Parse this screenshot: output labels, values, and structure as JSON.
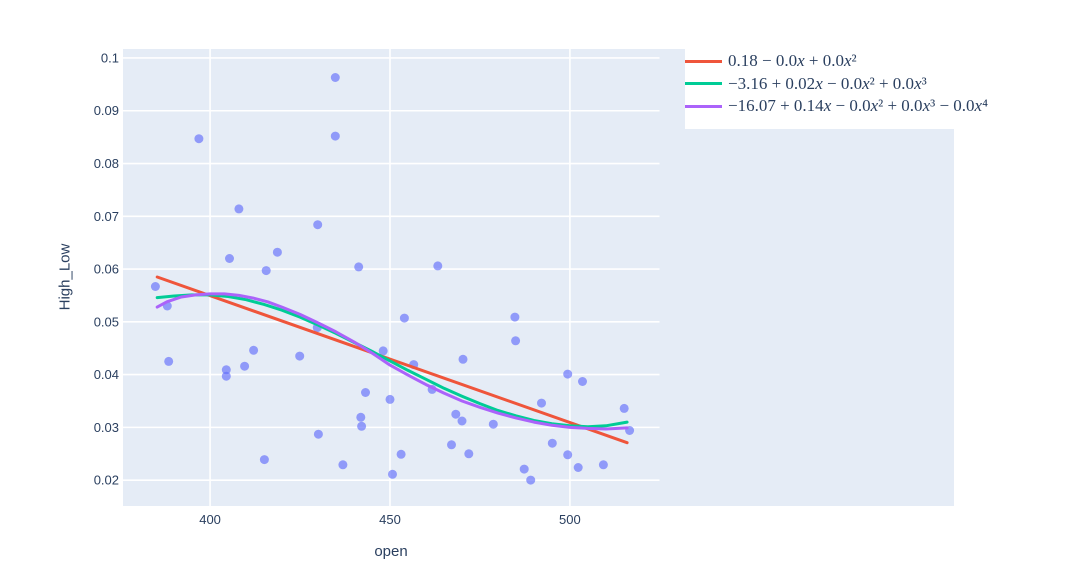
{
  "figure": {
    "colors": {
      "paper_bg": "#ffffff",
      "plot_bg": "#e5ecf6",
      "grid": "#ffffff",
      "text": "#2a3f5f",
      "legend_bg": "#ffffff"
    }
  },
  "chart_data": {
    "type": "scatter",
    "title": "",
    "xlabel": "open",
    "ylabel": "High_Low",
    "xlim": [
      375.8,
      524.9
    ],
    "ylim": [
      0.0151,
      0.1017
    ],
    "grid": true,
    "legend_position": "top-right-outside",
    "x_ticks": {
      "values": [
        400,
        450,
        500
      ],
      "labels": [
        "400",
        "450",
        "500"
      ]
    },
    "y_ticks": {
      "values": [
        0.02,
        0.03,
        0.04,
        0.05,
        0.06,
        0.07,
        0.08,
        0.09,
        0.1
      ],
      "labels": [
        "0.02",
        "0.03",
        "0.04",
        "0.05",
        "0.06",
        "0.07",
        "0.08",
        "0.09",
        "0.1"
      ]
    },
    "marker": {
      "color": "#636EFA",
      "opacity": 0.65,
      "size": 9
    },
    "points": [
      [
        434.8,
        0.0963
      ],
      [
        396.9,
        0.0847
      ],
      [
        434.8,
        0.0852
      ],
      [
        408.0,
        0.0714
      ],
      [
        429.9,
        0.0684
      ],
      [
        418.7,
        0.0632
      ],
      [
        405.4,
        0.062
      ],
      [
        415.6,
        0.0597
      ],
      [
        441.3,
        0.0604
      ],
      [
        463.3,
        0.0606
      ],
      [
        384.8,
        0.0567
      ],
      [
        388.1,
        0.053
      ],
      [
        388.5,
        0.0425
      ],
      [
        404.5,
        0.0409
      ],
      [
        404.5,
        0.0397
      ],
      [
        409.6,
        0.0416
      ],
      [
        412.1,
        0.0446
      ],
      [
        424.9,
        0.0435
      ],
      [
        429.8,
        0.0489
      ],
      [
        448.1,
        0.0445
      ],
      [
        443.2,
        0.0366
      ],
      [
        441.9,
        0.0319
      ],
      [
        442.1,
        0.0302
      ],
      [
        430.1,
        0.0287
      ],
      [
        415.1,
        0.0239
      ],
      [
        436.9,
        0.0229
      ],
      [
        454.0,
        0.0507
      ],
      [
        484.7,
        0.0509
      ],
      [
        484.9,
        0.0464
      ],
      [
        470.3,
        0.0429
      ],
      [
        456.6,
        0.0419
      ],
      [
        450.0,
        0.0353
      ],
      [
        461.7,
        0.0372
      ],
      [
        492.1,
        0.0346
      ],
      [
        499.4,
        0.0401
      ],
      [
        503.5,
        0.0387
      ],
      [
        468.3,
        0.0325
      ],
      [
        470.0,
        0.0312
      ],
      [
        478.7,
        0.0306
      ],
      [
        515.1,
        0.0336
      ],
      [
        516.6,
        0.0294
      ],
      [
        495.1,
        0.027
      ],
      [
        467.1,
        0.0267
      ],
      [
        453.1,
        0.0249
      ],
      [
        471.9,
        0.025
      ],
      [
        499.4,
        0.0248
      ],
      [
        502.3,
        0.0224
      ],
      [
        509.3,
        0.0229
      ],
      [
        487.3,
        0.0221
      ],
      [
        489.1,
        0.02
      ],
      [
        450.7,
        0.0211
      ]
    ],
    "series": [
      {
        "name": "0.18 − 0.0x + 0.0x²",
        "color": "#EF553B",
        "points": [
          [
            385.3,
            0.0585
          ],
          [
            515.9,
            0.0271
          ]
        ]
      },
      {
        "name": "−3.16 + 0.02x − 0.0x² + 0.0x³",
        "color": "#00CC96",
        "points": [
          [
            385.3,
            0.0546
          ],
          [
            390,
            0.0549
          ],
          [
            395,
            0.0551
          ],
          [
            400,
            0.0551
          ],
          [
            405,
            0.0548
          ],
          [
            410,
            0.0542
          ],
          [
            415,
            0.0533
          ],
          [
            420,
            0.0522
          ],
          [
            425,
            0.0509
          ],
          [
            430,
            0.0494
          ],
          [
            435,
            0.0478
          ],
          [
            440,
            0.0461
          ],
          [
            445,
            0.0444
          ],
          [
            450,
            0.0426
          ],
          [
            455,
            0.0408
          ],
          [
            460,
            0.0391
          ],
          [
            465,
            0.0374
          ],
          [
            470,
            0.0359
          ],
          [
            475,
            0.0345
          ],
          [
            480,
            0.0332
          ],
          [
            485,
            0.0322
          ],
          [
            490,
            0.0313
          ],
          [
            495,
            0.0307
          ],
          [
            500,
            0.0303
          ],
          [
            505,
            0.0301
          ],
          [
            510,
            0.0303
          ],
          [
            515.9,
            0.031
          ]
        ]
      },
      {
        "name": "−16.07 + 0.14x − 0.0x² + 0.0x³ − 0.0x⁴",
        "color": "#AB63FA",
        "points": [
          [
            385.3,
            0.0528
          ],
          [
            388,
            0.0538
          ],
          [
            392,
            0.0547
          ],
          [
            396,
            0.0551
          ],
          [
            400,
            0.0553
          ],
          [
            404,
            0.0553
          ],
          [
            408,
            0.055
          ],
          [
            412,
            0.0545
          ],
          [
            416,
            0.0538
          ],
          [
            420,
            0.0528
          ],
          [
            425,
            0.0514
          ],
          [
            430,
            0.0498
          ],
          [
            435,
            0.0481
          ],
          [
            440,
            0.0462
          ],
          [
            445,
            0.0441
          ],
          [
            450,
            0.0418
          ],
          [
            455,
            0.0399
          ],
          [
            460,
            0.0381
          ],
          [
            465,
            0.0365
          ],
          [
            470,
            0.035
          ],
          [
            475,
            0.0338
          ],
          [
            480,
            0.0327
          ],
          [
            485,
            0.0318
          ],
          [
            490,
            0.031
          ],
          [
            495,
            0.0304
          ],
          [
            500,
            0.03
          ],
          [
            505,
            0.0298
          ],
          [
            510,
            0.0297
          ],
          [
            515.9,
            0.0299
          ]
        ]
      }
    ]
  }
}
